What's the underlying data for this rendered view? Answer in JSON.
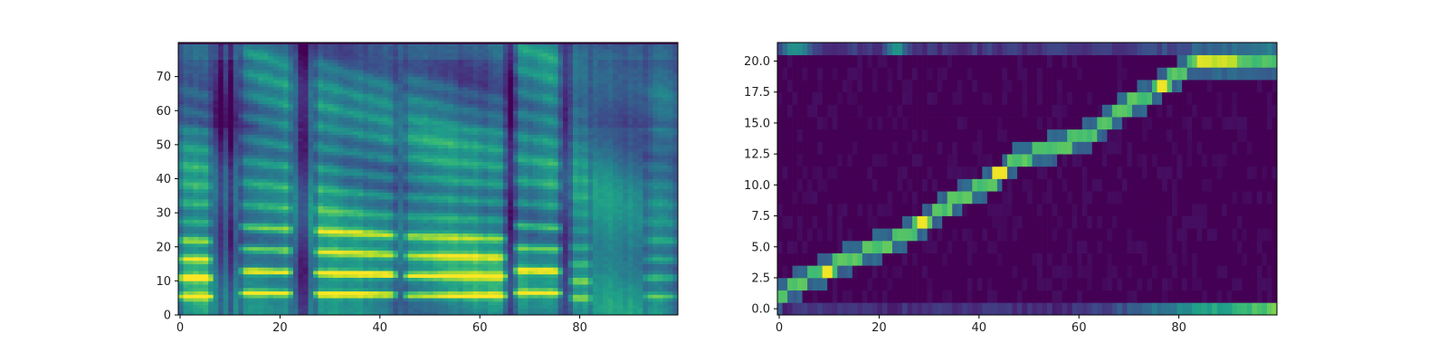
{
  "chart_data": [
    {
      "type": "heatmap",
      "title": "",
      "xlabel": "",
      "ylabel": "",
      "colormap": "viridis",
      "xlim": [
        0,
        100
      ],
      "ylim": [
        0,
        80
      ],
      "xticks": [
        0,
        20,
        40,
        60,
        80
      ],
      "xtick_labels": [
        "0",
        "20",
        "40",
        "60",
        "80"
      ],
      "yticks": [
        0,
        10,
        20,
        30,
        40,
        50,
        60,
        70
      ],
      "ytick_labels": [
        "0",
        "10",
        "20",
        "30",
        "40",
        "50",
        "60",
        "70"
      ],
      "frames": 100,
      "bins": 80,
      "voiced_segments": [
        {
          "start": 0,
          "end": 7,
          "f0": 5.5,
          "strength": 0.95
        },
        {
          "start": 12.5,
          "end": 23,
          "f0": 6.5,
          "strength": 1.0
        },
        {
          "start": 27,
          "end": 44,
          "f0": 6.2,
          "strength": 1.0
        },
        {
          "start": 45,
          "end": 66,
          "f0": 5.8,
          "strength": 0.9
        },
        {
          "start": 67,
          "end": 77,
          "f0": 6.6,
          "strength": 0.9
        },
        {
          "start": 78,
          "end": 83,
          "f0": 5.0,
          "strength": 0.55
        },
        {
          "start": 93,
          "end": 100,
          "f0": 5.5,
          "strength": 0.5
        }
      ],
      "silence_frames": [
        8.5,
        10.5,
        24.5,
        25.5,
        66.5,
        77.5
      ]
    },
    {
      "type": "heatmap",
      "title": "",
      "xlabel": "",
      "ylabel": "",
      "colormap": "viridis",
      "xlim": [
        0,
        100
      ],
      "ylim": [
        -0.5,
        21.5
      ],
      "xticks": [
        0,
        20,
        40,
        60,
        80
      ],
      "xtick_labels": [
        "0",
        "20",
        "40",
        "60",
        "80"
      ],
      "yticks": [
        0,
        2.5,
        5,
        7.5,
        10,
        12.5,
        15,
        17.5,
        20
      ],
      "ytick_labels": [
        "0.0",
        "2.5",
        "5.0",
        "7.5",
        "10.0",
        "12.5",
        "15.0",
        "17.5",
        "20.0"
      ],
      "frames": 100,
      "tokens": 22,
      "alignment_path": [
        {
          "x": 0,
          "y": 1
        },
        {
          "x": 6,
          "y": 2.5
        },
        {
          "x": 9,
          "y": 3
        },
        {
          "x": 14,
          "y": 4
        },
        {
          "x": 20,
          "y": 5
        },
        {
          "x": 26,
          "y": 6
        },
        {
          "x": 29,
          "y": 7
        },
        {
          "x": 33,
          "y": 8
        },
        {
          "x": 36,
          "y": 9
        },
        {
          "x": 42,
          "y": 10
        },
        {
          "x": 45,
          "y": 11
        },
        {
          "x": 47,
          "y": 12
        },
        {
          "x": 55,
          "y": 13
        },
        {
          "x": 62,
          "y": 14
        },
        {
          "x": 66,
          "y": 15
        },
        {
          "x": 68,
          "y": 16
        },
        {
          "x": 73,
          "y": 17
        },
        {
          "x": 77,
          "y": 18
        },
        {
          "x": 80,
          "y": 19
        },
        {
          "x": 84,
          "y": 20
        },
        {
          "x": 92,
          "y": 20
        },
        {
          "x": 100,
          "y": 20
        }
      ],
      "peak_tokens": [
        {
          "x": 44.5,
          "y": 11
        },
        {
          "x": 77,
          "y": 18
        },
        {
          "x": 29,
          "y": 7
        },
        {
          "x": 10,
          "y": 3
        }
      ]
    }
  ]
}
